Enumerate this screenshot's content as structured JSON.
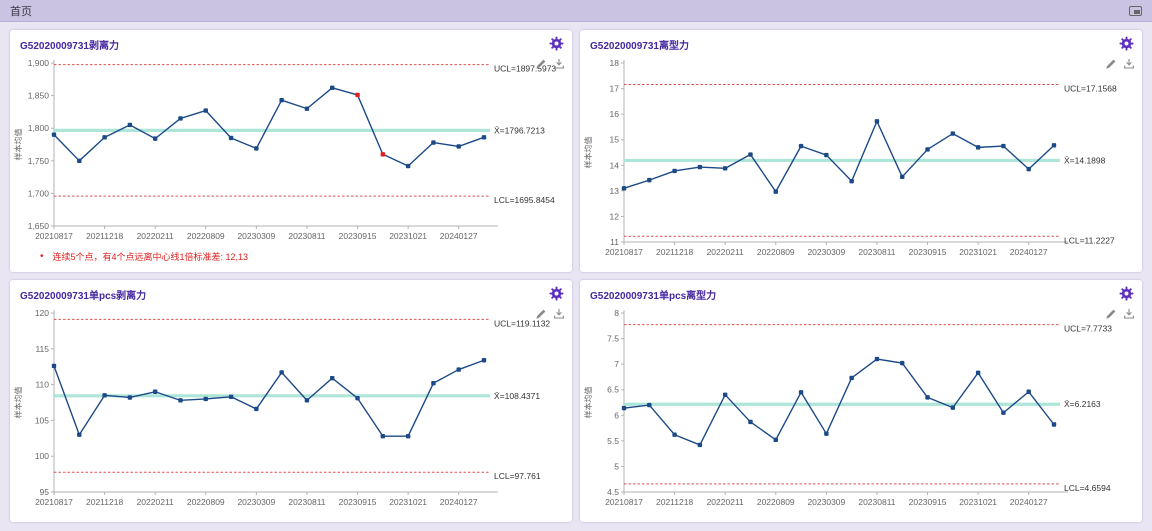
{
  "tab_bar": {
    "home_label": "首页"
  },
  "icons": {
    "expand": "expand-icon",
    "gear": "gear-icon",
    "edit": "pencil-icon",
    "download": "download-icon"
  },
  "colors": {
    "series_line": "#1c4a87",
    "out_of_control_point": "#e01f1f",
    "limit_line": "#e05050",
    "center_line": "#a9e4d6",
    "title_text": "#4527a0",
    "gear": "#5d2fc0"
  },
  "chart_data": [
    {
      "type": "line",
      "title": "G52020009731剥离力",
      "ylabel": "样本均值",
      "ylim": [
        1650,
        1900
      ],
      "yticks": [
        1650,
        1700,
        1750,
        1800,
        1850,
        1900
      ],
      "ytick_labels": [
        "1,650",
        "1,700",
        "1,750",
        "1,800",
        "1,850",
        "1,900"
      ],
      "x_tick_labels": [
        "20210817",
        "20211218",
        "20220211",
        "20220809",
        "20230309",
        "20230811",
        "20230915",
        "20231021",
        "20240127"
      ],
      "x_label_indices": [
        0,
        2,
        4,
        6,
        8,
        10,
        12,
        14,
        16
      ],
      "values": [
        1790,
        1750,
        1786,
        1805,
        1784,
        1815,
        1827,
        1785,
        1769,
        1843,
        1830,
        1862,
        1851,
        1760,
        1742,
        1778,
        1772,
        1786
      ],
      "out_of_control_indices": [
        12,
        13
      ],
      "ucl": 1897.5973,
      "center": 1796.7213,
      "lcl": 1695.8454,
      "ucl_label": "UCL=1897.5973",
      "center_label": "X̄=1796.7213",
      "lcl_label": "LCL=1695.8454",
      "note_bullet": "•",
      "note": "连续5个点，有4个点远离中心线1倍标准差: 12,13"
    },
    {
      "type": "line",
      "title": "G52020009731离型力",
      "ylabel": "样本均值",
      "ylim": [
        11,
        18
      ],
      "yticks": [
        11,
        12,
        13,
        14,
        15,
        16,
        17,
        18
      ],
      "ytick_labels": [
        "11",
        "12",
        "13",
        "14",
        "15",
        "16",
        "17",
        "18"
      ],
      "x_tick_labels": [
        "20210817",
        "20211218",
        "20220211",
        "20220809",
        "20230309",
        "20230811",
        "20230915",
        "20231021",
        "20240127"
      ],
      "x_label_indices": [
        0,
        2,
        4,
        6,
        8,
        10,
        12,
        14,
        16
      ],
      "values": [
        13.1,
        13.42,
        13.78,
        13.93,
        13.88,
        14.42,
        12.97,
        14.75,
        14.4,
        13.38,
        15.72,
        13.55,
        14.62,
        15.24,
        14.7,
        14.75,
        13.85,
        14.78
      ],
      "out_of_control_indices": [],
      "ucl": 17.1568,
      "center": 14.1898,
      "lcl": 11.2227,
      "ucl_label": "UCL=17.1568",
      "center_label": "X̄=14.1898",
      "lcl_label": "LCL=11.2227"
    },
    {
      "type": "line",
      "title": "G52020009731单pcs剥离力",
      "ylabel": "样本均值",
      "ylim": [
        95,
        120
      ],
      "yticks": [
        95,
        100,
        105,
        110,
        115,
        120
      ],
      "ytick_labels": [
        "95",
        "100",
        "105",
        "110",
        "115",
        "120"
      ],
      "x_tick_labels": [
        "20210817",
        "20211218",
        "20220211",
        "20220809",
        "20230309",
        "20230811",
        "20230915",
        "20231021",
        "20240127"
      ],
      "x_label_indices": [
        0,
        2,
        4,
        6,
        8,
        10,
        12,
        14,
        16
      ],
      "values": [
        112.6,
        103.0,
        108.5,
        108.2,
        109.0,
        107.8,
        108.0,
        108.3,
        106.6,
        111.7,
        107.8,
        110.9,
        108.1,
        102.8,
        102.8,
        110.2,
        112.1,
        113.4
      ],
      "out_of_control_indices": [],
      "ucl": 119.1132,
      "center": 108.4371,
      "lcl": 97.761,
      "ucl_label": "UCL=119.1132",
      "center_label": "X̄=108.4371",
      "lcl_label": "LCL=97.761"
    },
    {
      "type": "line",
      "title": "G52020009731单pcs离型力",
      "ylabel": "样本均值",
      "ylim": [
        4.5,
        8
      ],
      "yticks": [
        4.5,
        5,
        5.5,
        6,
        6.5,
        7,
        7.5,
        8
      ],
      "ytick_labels": [
        "4.5",
        "5",
        "5.5",
        "6",
        "6.5",
        "7",
        "7.5",
        "8"
      ],
      "x_tick_labels": [
        "20210817",
        "20211218",
        "20220211",
        "20220809",
        "20230309",
        "20230811",
        "20230915",
        "20231021",
        "20240127"
      ],
      "x_label_indices": [
        0,
        2,
        4,
        6,
        8,
        10,
        12,
        14,
        16
      ],
      "values": [
        6.14,
        6.2,
        5.62,
        5.42,
        6.4,
        5.87,
        5.52,
        6.45,
        5.64,
        6.73,
        7.1,
        7.02,
        6.35,
        6.15,
        6.83,
        6.05,
        6.46,
        5.82
      ],
      "out_of_control_indices": [],
      "ucl": 7.7733,
      "center": 6.2163,
      "lcl": 4.6594,
      "ucl_label": "UCL=7.7733",
      "center_label": "X̄=6.2163",
      "lcl_label": "LCL=4.6594"
    }
  ]
}
